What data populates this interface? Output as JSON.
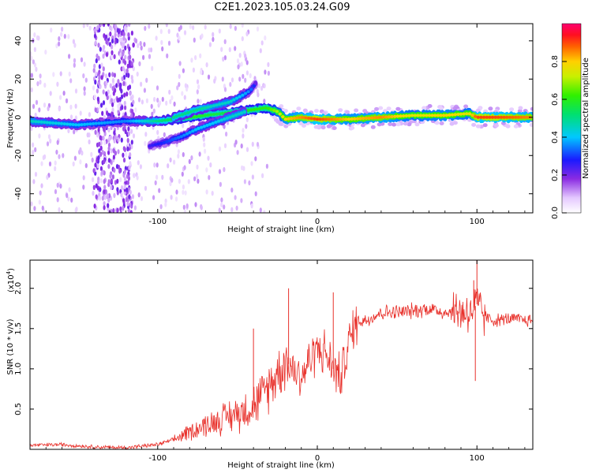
{
  "title": "C2E1.2023.105.03.24.G09",
  "chart_data": [
    {
      "type": "heatmap",
      "xlabel": "Height of straight line (km)",
      "ylabel": "Frequency (Hz)",
      "xlim": [
        -180,
        135
      ],
      "ylim": [
        -50,
        49
      ],
      "xticks": [
        -100,
        0,
        100
      ],
      "xtick_labels": [
        "-100",
        "0",
        "100"
      ],
      "yticks": [
        -40,
        -20,
        0,
        20,
        40
      ],
      "ytick_labels": [
        "-40",
        "-20",
        "0",
        "20",
        "40"
      ],
      "colorbar": {
        "label": "Normalized spectral amplitude",
        "range": [
          0,
          1
        ],
        "ticks": [
          0.0,
          0.2,
          0.4,
          0.6,
          0.8
        ],
        "tick_labels": [
          "0.0",
          "0.2",
          "0.4",
          "0.6",
          "0.8"
        ]
      },
      "traces": [
        {
          "name": "main",
          "x": [
            -180,
            -150,
            -120,
            -100,
            -80,
            -60,
            -40,
            -32,
            -25,
            -20,
            -10,
            0,
            20,
            40,
            60,
            80,
            95,
            100,
            110,
            135
          ],
          "y": [
            -2,
            -4,
            -2,
            -2,
            0,
            2,
            4,
            5,
            3,
            -1,
            0,
            -1,
            -1,
            0,
            1,
            1,
            2,
            0,
            0,
            0
          ],
          "amplitude": [
            0.45,
            0.4,
            0.35,
            0.5,
            0.6,
            0.55,
            0.6,
            0.6,
            0.7,
            0.8,
            0.85,
            0.9,
            0.8,
            0.85,
            0.75,
            0.8,
            0.75,
            0.9,
            0.9,
            0.85
          ]
        },
        {
          "name": "upper branch",
          "x": [
            -90,
            -75,
            -65,
            -55,
            -48,
            -42,
            -38
          ],
          "y": [
            0,
            4,
            6,
            8,
            11,
            14,
            18
          ],
          "amplitude": [
            0.5,
            0.5,
            0.45,
            0.45,
            0.4,
            0.35,
            0.25
          ]
        },
        {
          "name": "lower branch",
          "x": [
            -105,
            -95,
            -85,
            -75,
            -65,
            -55,
            -45
          ],
          "y": [
            -15,
            -13,
            -10,
            -6,
            -3,
            0,
            3
          ],
          "amplitude": [
            0.25,
            0.3,
            0.35,
            0.4,
            0.4,
            0.45,
            0.45
          ]
        }
      ]
    },
    {
      "type": "line",
      "xlabel": "Height of straight line (km)",
      "ylabel": "SNR (10 * v/v)",
      "y_multiplier": "(x10",
      "y_multiplier_exp": "4",
      "xlim": [
        -180,
        135
      ],
      "ylim": [
        0,
        2.35
      ],
      "xticks": [
        -100,
        0,
        100
      ],
      "xtick_labels": [
        "-100",
        "0",
        "100"
      ],
      "yticks": [
        0.5,
        1.0,
        1.5,
        2.0
      ],
      "ytick_labels": [
        "0.5",
        "1.0",
        "1.5",
        "2.0"
      ],
      "color": "#e8302a",
      "series": [
        {
          "name": "SNR",
          "x": [
            -180,
            -160,
            -140,
            -120,
            -100,
            -90,
            -80,
            -70,
            -60,
            -50,
            -40,
            -35,
            -30,
            -25,
            -20,
            -15,
            -10,
            -5,
            0,
            5,
            10,
            15,
            20,
            25,
            30,
            40,
            50,
            60,
            70,
            80,
            90,
            95,
            100,
            105,
            110,
            120,
            135
          ],
          "y": [
            0.05,
            0.06,
            0.03,
            0.02,
            0.06,
            0.12,
            0.22,
            0.3,
            0.38,
            0.45,
            0.55,
            0.65,
            0.8,
            0.95,
            1.1,
            1.0,
            0.9,
            1.1,
            1.25,
            1.2,
            1.0,
            0.9,
            1.35,
            1.6,
            1.6,
            1.7,
            1.7,
            1.72,
            1.75,
            1.7,
            1.72,
            1.7,
            1.8,
            1.65,
            1.6,
            1.62,
            1.6
          ]
        },
        {
          "name": "spikes",
          "x": [
            -18,
            -40,
            10,
            100,
            99,
            98
          ],
          "y": [
            2.0,
            1.5,
            1.95,
            2.35,
            0.85,
            2.1
          ]
        }
      ]
    }
  ]
}
